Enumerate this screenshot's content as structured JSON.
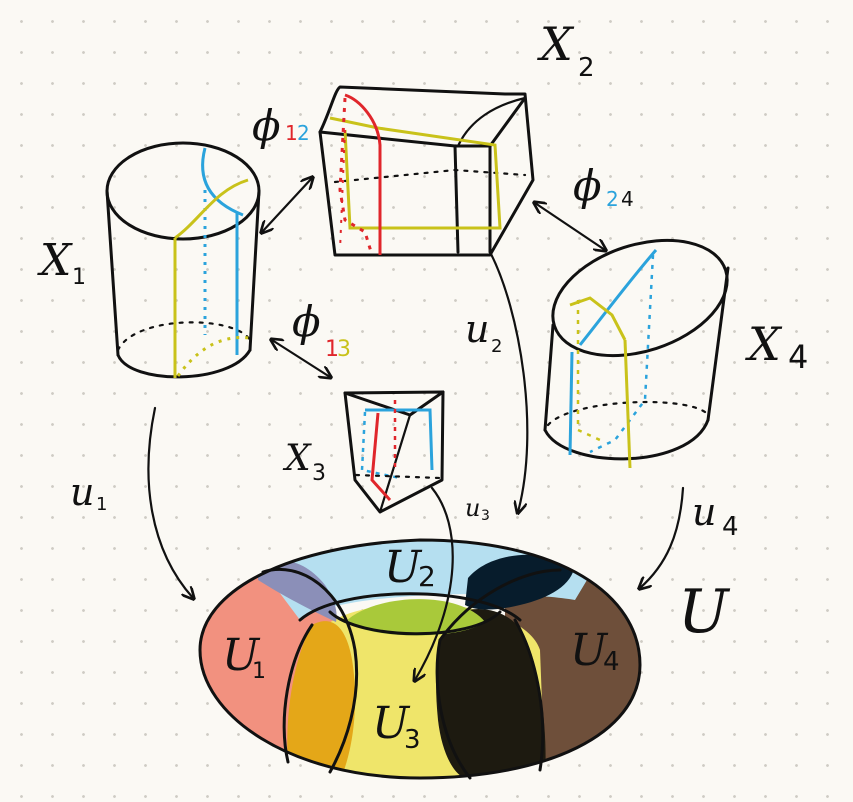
{
  "labels": {
    "x1": "X",
    "x1_sub": "1",
    "x2": "X",
    "x2_sub": "2",
    "x3": "X",
    "x3_sub": "3",
    "x4": "X",
    "x4_sub": "4",
    "phi12": "ϕ",
    "phi12_a": "1",
    "phi12_b": "2",
    "phi13": "ϕ",
    "phi13_a": "1",
    "phi13_b": "3",
    "phi24": "ϕ",
    "phi24_a": "2",
    "phi24_b": "4",
    "u1_map": "u",
    "u1_map_sub": "1",
    "u2_map": "u",
    "u2_map_sub": "2",
    "u3_map": "u",
    "u3_map_sub": "3",
    "u4_map": "u",
    "u4_map_sub": "4",
    "U": "U",
    "U1": "U",
    "U1_sub": "1",
    "U2": "U",
    "U2_sub": "2",
    "U3": "U",
    "U3_sub": "3",
    "U4": "U",
    "U4_sub": "4"
  },
  "colors": {
    "ink": "#111111",
    "red": "#e0262b",
    "blue": "#2ba3dc",
    "olive": "#c9c21a",
    "region_u1": "#f2917f",
    "region_u2": "#b5dff0",
    "region_u3": "#efe56a",
    "region_u4": "#6e4f3a",
    "overlap_u1_u2": "#8b8fb8",
    "overlap_u1_u3": "#e4a718",
    "overlap_u3_u4": "#1d1a10",
    "overlap_u2_u4": "#071c2c",
    "overlap_u2_u3": "#a9c93a"
  }
}
